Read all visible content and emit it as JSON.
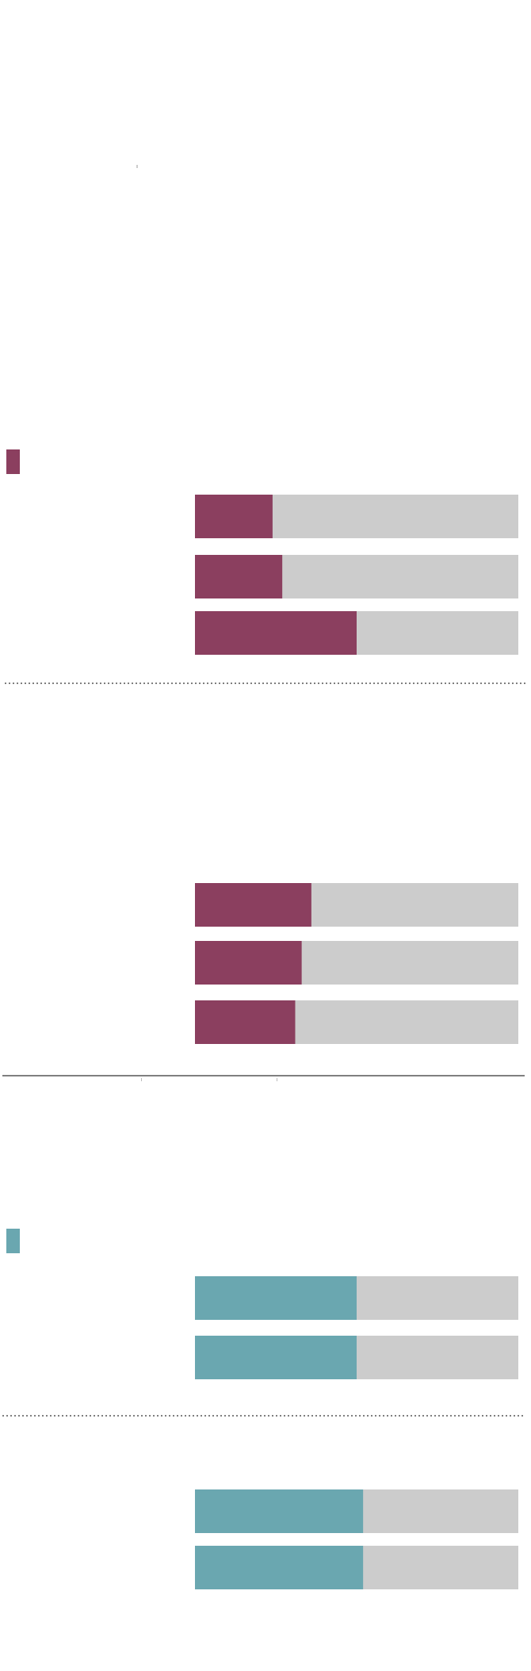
{
  "chart_data": {
    "type": "bar",
    "xlim": [
      0,
      100
    ],
    "track_color": "#cccccc",
    "groups": [
      {
        "color": "#8b3f5f",
        "values": [
          24,
          27,
          50
        ]
      },
      {
        "color": "#8b3f5f",
        "values": [
          36,
          33,
          31
        ]
      },
      {
        "color": "#6aa7b0",
        "values": [
          50,
          50
        ]
      },
      {
        "color": "#6aa7b0",
        "values": [
          52,
          52
        ]
      }
    ]
  }
}
